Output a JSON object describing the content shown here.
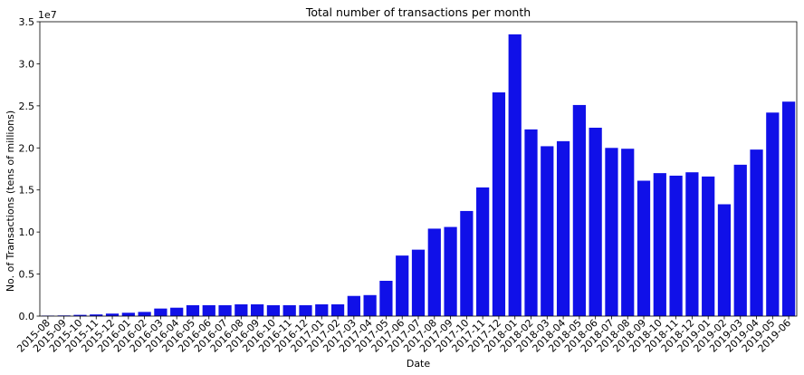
{
  "chart_data": {
    "type": "bar",
    "title": "Total number of transactions per month",
    "xlabel": "Date",
    "ylabel": "No. of Transactions (tens of millions)",
    "scale_label": "1e7",
    "ylim": [
      0,
      35000000
    ],
    "yticks": [
      0,
      5000000,
      10000000,
      15000000,
      20000000,
      25000000,
      30000000,
      35000000
    ],
    "ytick_labels": [
      "0.0",
      "0.5",
      "1.0",
      "1.5",
      "2.0",
      "2.5",
      "3.0",
      "3.5"
    ],
    "bar_color": "#1010e8",
    "grid": false,
    "categories": [
      "2015-08",
      "2015-09",
      "2015-10",
      "2015-11",
      "2015-12",
      "2016-01",
      "2016-02",
      "2016-03",
      "2016-04",
      "2016-05",
      "2016-06",
      "2016-07",
      "2016-08",
      "2016-09",
      "2016-10",
      "2016-11",
      "2016-12",
      "2017-01",
      "2017-02",
      "2017-03",
      "2017-04",
      "2017-05",
      "2017-06",
      "2017-07",
      "2017-08",
      "2017-09",
      "2017-10",
      "2017-11",
      "2017-12",
      "2018-01",
      "2018-02",
      "2018-03",
      "2018-04",
      "2018-05",
      "2018-06",
      "2018-07",
      "2018-08",
      "2018-09",
      "2018-10",
      "2018-11",
      "2018-12",
      "2019-01",
      "2019-02",
      "2019-03",
      "2019-04",
      "2019-05",
      "2019-06"
    ],
    "values": [
      60000,
      80000,
      150000,
      200000,
      300000,
      400000,
      500000,
      900000,
      1000000,
      1300000,
      1300000,
      1300000,
      1400000,
      1400000,
      1300000,
      1300000,
      1300000,
      1400000,
      1400000,
      2400000,
      2500000,
      4200000,
      7200000,
      7900000,
      10400000,
      10600000,
      12500000,
      15300000,
      26600000,
      33500000,
      22200000,
      20200000,
      20800000,
      25100000,
      22400000,
      20000000,
      19900000,
      16100000,
      17000000,
      16700000,
      17100000,
      16600000,
      13300000,
      18000000,
      19800000,
      24200000,
      25500000
    ]
  }
}
